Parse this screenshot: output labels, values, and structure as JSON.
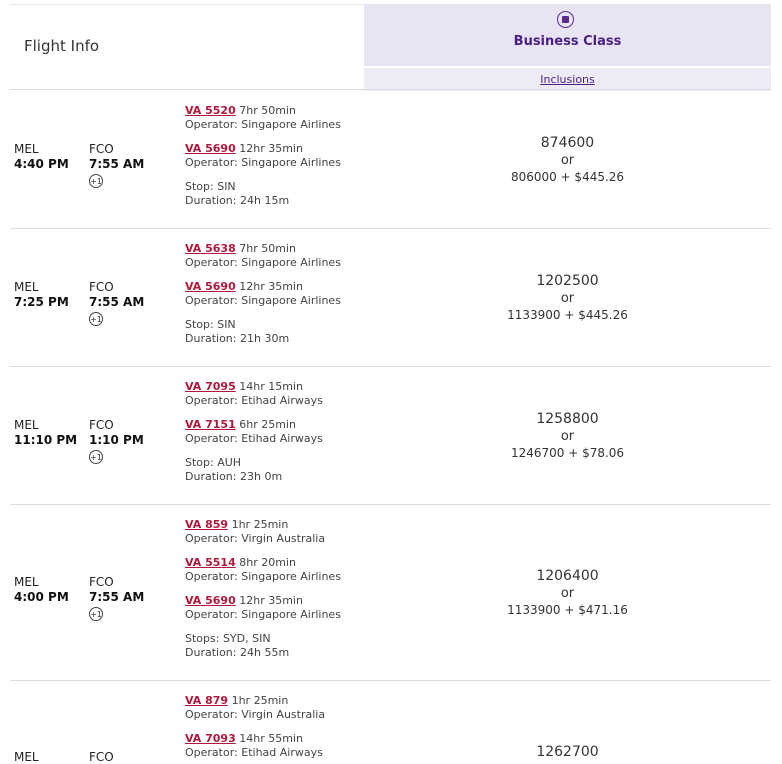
{
  "header": {
    "flight_info": "Flight Info",
    "cabin_label": "Business Class",
    "cabin_icon": "briefcase-icon",
    "inclusions_label": "Inclusions"
  },
  "rows": [
    {
      "dep_code": "MEL",
      "dep_time": "4:40 PM",
      "arr_code": "FCO",
      "arr_time": "7:55 AM",
      "day_offset": "+1",
      "segments": [
        {
          "flight": "VA 5520",
          "duration": "7hr 50min",
          "operator": "Operator: Singapore Airlines"
        },
        {
          "flight": "VA 5690",
          "duration": "12hr 35min",
          "operator": "Operator: Singapore Airlines"
        }
      ],
      "stops": "Stop: SIN",
      "total_duration": "Duration: 24h 15m",
      "points": "874600",
      "or_label": "or",
      "mixed": "806000 + $445.26"
    },
    {
      "dep_code": "MEL",
      "dep_time": "7:25 PM",
      "arr_code": "FCO",
      "arr_time": "7:55 AM",
      "day_offset": "+1",
      "segments": [
        {
          "flight": "VA 5638",
          "duration": "7hr 50min",
          "operator": "Operator: Singapore Airlines"
        },
        {
          "flight": "VA 5690",
          "duration": "12hr 35min",
          "operator": "Operator: Singapore Airlines"
        }
      ],
      "stops": "Stop: SIN",
      "total_duration": "Duration: 21h 30m",
      "points": "1202500",
      "or_label": "or",
      "mixed": "1133900 + $445.26"
    },
    {
      "dep_code": "MEL",
      "dep_time": "11:10 PM",
      "arr_code": "FCO",
      "arr_time": "1:10 PM",
      "day_offset": "+1",
      "segments": [
        {
          "flight": "VA 7095",
          "duration": "14hr 15min",
          "operator": "Operator: Etihad Airways"
        },
        {
          "flight": "VA 7151",
          "duration": "6hr 25min",
          "operator": "Operator: Etihad Airways"
        }
      ],
      "stops": "Stop: AUH",
      "total_duration": "Duration: 23h 0m",
      "points": "1258800",
      "or_label": "or",
      "mixed": "1246700 + $78.06"
    },
    {
      "dep_code": "MEL",
      "dep_time": "4:00 PM",
      "arr_code": "FCO",
      "arr_time": "7:55 AM",
      "day_offset": "+1",
      "segments": [
        {
          "flight": "VA 859",
          "duration": "1hr 25min",
          "operator": "Operator: Virgin Australia"
        },
        {
          "flight": "VA 5514",
          "duration": "8hr 20min",
          "operator": "Operator: Singapore Airlines"
        },
        {
          "flight": "VA 5690",
          "duration": "12hr 35min",
          "operator": "Operator: Singapore Airlines"
        }
      ],
      "stops": "Stops: SYD, SIN",
      "total_duration": "Duration: 24h 55m",
      "points": "1206400",
      "or_label": "or",
      "mixed": "1133900 + $471.16"
    },
    {
      "dep_code": "MEL",
      "dep_time": "",
      "arr_code": "FCO",
      "arr_time": "",
      "day_offset": "",
      "segments": [
        {
          "flight": "VA 879",
          "duration": "1hr 25min",
          "operator": "Operator: Virgin Australia"
        },
        {
          "flight": "VA 7093",
          "duration": "14hr 55min",
          "operator": "Operator: Etihad Airways"
        }
      ],
      "stops": "",
      "total_duration": "",
      "points": "1262700",
      "or_label": "",
      "mixed": ""
    }
  ]
}
